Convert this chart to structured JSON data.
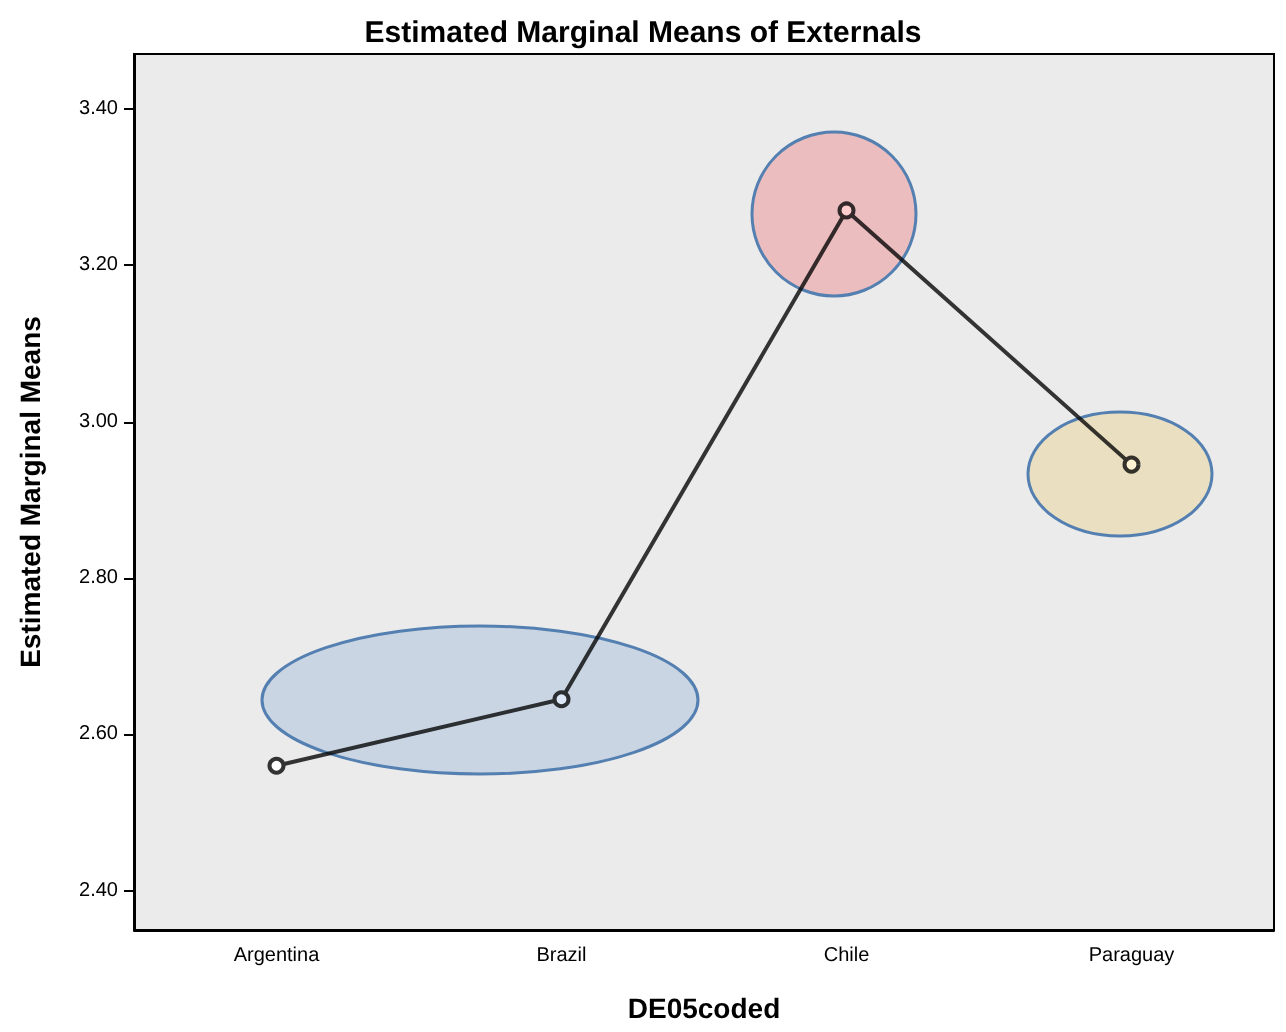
{
  "chart_data": {
    "type": "line",
    "title": "Estimated Marginal Means of Externals",
    "xlabel": "DE05coded",
    "ylabel": "Estimated Marginal Means",
    "categories": [
      "Argentina",
      "Brazil",
      "Chile",
      "Paraguay"
    ],
    "series": [
      {
        "color": "#333333",
        "values": [
          2.56,
          2.645,
          3.27,
          2.945
        ]
      }
    ],
    "ylim": [
      2.35,
      3.47
    ],
    "yticks": [
      {
        "value": 2.4,
        "label": "2.40"
      },
      {
        "value": 2.6,
        "label": "2.60"
      },
      {
        "value": 2.8,
        "label": "2.80"
      },
      {
        "value": 3.0,
        "label": "3.00"
      },
      {
        "value": 3.2,
        "label": "3.20"
      },
      {
        "value": 3.4,
        "label": "3.40"
      }
    ],
    "grid": false,
    "marker": "circle",
    "line_style": "solid"
  }
}
